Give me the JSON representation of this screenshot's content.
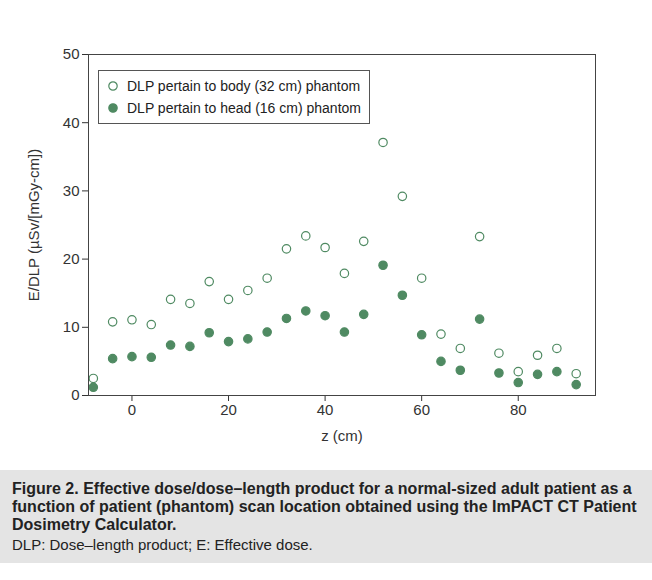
{
  "chart_data": {
    "type": "scatter",
    "x_label": "z (cm)",
    "y_label": "E/DLP (µSv/[mGy-cm])",
    "caption": "Figure 2. Effective dose/dose–length product for a normal-sized adult patient as a function of patient (phantom) scan location obtained using the ImPACT CT Patient Dosimetry Calculator.",
    "note": "DLP: Dose–length product; E: Effective dose.",
    "x": [
      -8,
      -4,
      0,
      4,
      8,
      12,
      16,
      20,
      24,
      28,
      32,
      36,
      40,
      44,
      48,
      52,
      56,
      60,
      64,
      68,
      72,
      76,
      80,
      84,
      88,
      92
    ],
    "series": [
      {
        "name": "DLP pertain to body (32 cm) phantom",
        "color": "#4f8a62",
        "marker": "circle_open",
        "values": [
          2.5,
          10.8,
          11.1,
          10.4,
          14.1,
          13.5,
          16.7,
          14.1,
          15.4,
          17.2,
          21.5,
          23.4,
          21.7,
          17.9,
          22.6,
          37.1,
          29.2,
          17.2,
          9.0,
          6.9,
          23.3,
          6.2,
          3.5,
          5.9,
          6.9,
          3.2
        ]
      },
      {
        "name": "DLP pertain to head (16 cm) phantom",
        "color": "#4f8a62",
        "marker": "circle",
        "values": [
          1.2,
          5.4,
          5.7,
          5.6,
          7.4,
          7.2,
          9.2,
          7.9,
          8.3,
          9.3,
          11.3,
          12.4,
          11.7,
          9.3,
          11.9,
          19.1,
          14.7,
          8.9,
          5.0,
          3.7,
          11.2,
          3.3,
          1.9,
          3.1,
          3.5,
          1.6
        ]
      }
    ],
    "xlim": [
      -9,
      96
    ],
    "xticks": [
      0,
      20,
      40,
      60,
      80
    ],
    "ylim": [
      0,
      50
    ],
    "yticks": [
      0,
      10,
      20,
      30,
      40,
      50
    ],
    "grid": false,
    "legend": "top-left"
  }
}
